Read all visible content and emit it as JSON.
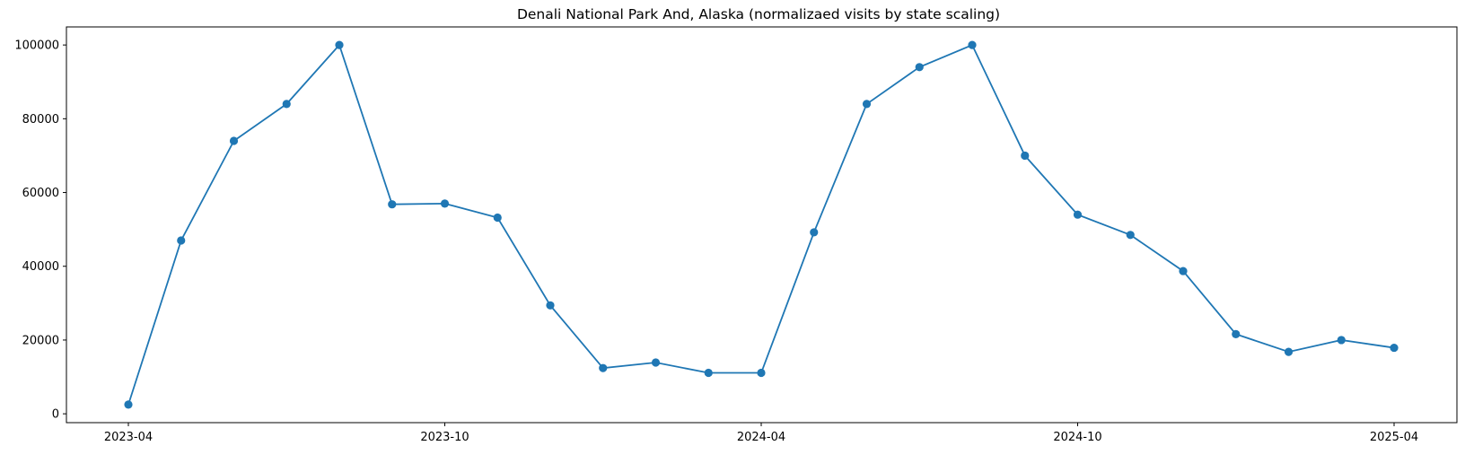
{
  "chart_data": {
    "type": "line",
    "title": "Denali National Park And, Alaska (normalizaed visits by state scaling)",
    "xlabel": "",
    "ylabel": "",
    "x": [
      "2023-04",
      "2023-05",
      "2023-06",
      "2023-07",
      "2023-08",
      "2023-09",
      "2023-10",
      "2023-11",
      "2023-12",
      "2024-01",
      "2024-02",
      "2024-03",
      "2024-04",
      "2024-05",
      "2024-06",
      "2024-07",
      "2024-08",
      "2024-09",
      "2024-10",
      "2024-11",
      "2024-12",
      "2025-01",
      "2025-02",
      "2025-03",
      "2025-04"
    ],
    "series": [
      {
        "values": [
          2500,
          47000,
          74000,
          84000,
          100000,
          56800,
          57000,
          53200,
          29400,
          12400,
          13900,
          11100,
          11100,
          49200,
          84000,
          94000,
          100000,
          70000,
          54000,
          48500,
          38700,
          21600,
          16800,
          20000,
          17900
        ]
      }
    ],
    "x_ticks": [
      "2023-04",
      "2023-10",
      "2024-04",
      "2024-10",
      "2025-04"
    ],
    "y_ticks": [
      "0",
      "20000",
      "40000",
      "60000",
      "80000",
      "100000"
    ],
    "ylim": [
      -2400,
      104900
    ],
    "grid": false,
    "colors": {
      "line": "#1f77b4",
      "axes": "#000000"
    }
  }
}
